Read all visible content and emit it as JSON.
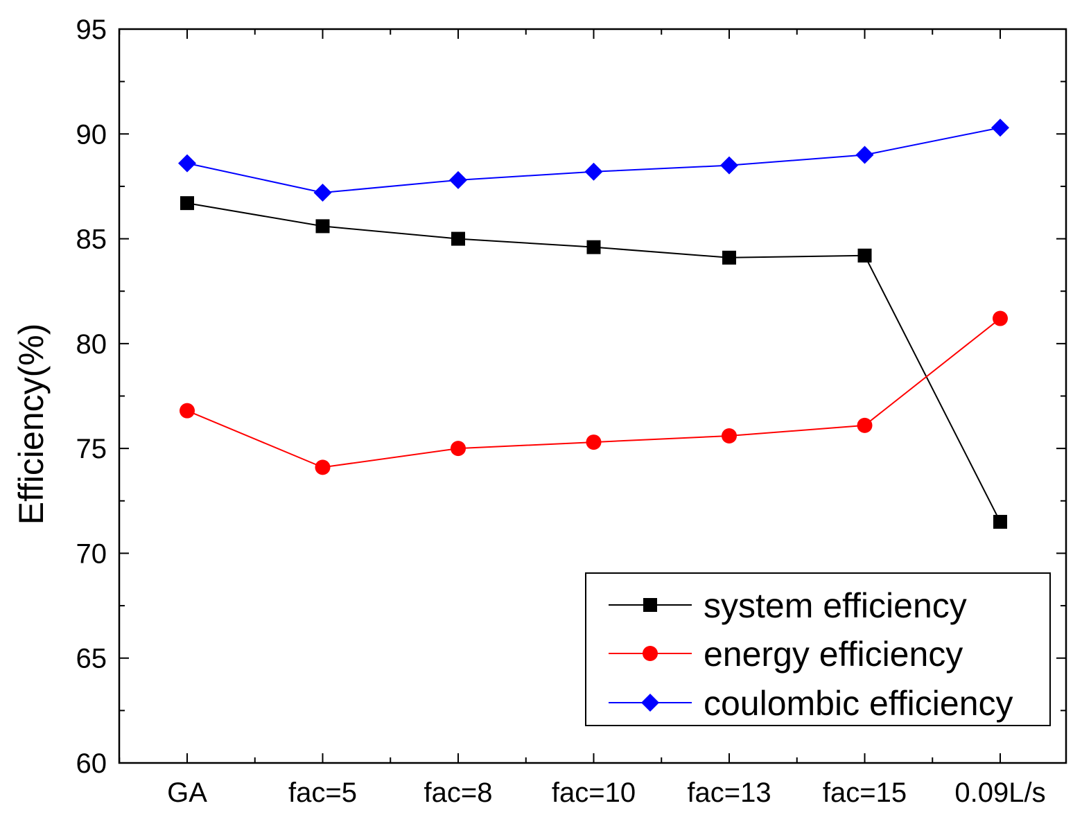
{
  "chart_data": {
    "type": "line",
    "categories": [
      "GA",
      "fac=5",
      "fac=8",
      "fac=10",
      "fac=13",
      "fac=15",
      "0.09L/s"
    ],
    "ylabel": "Efficiency(%)",
    "xlabel": "",
    "ylim": [
      60,
      95
    ],
    "yticks": [
      60,
      65,
      70,
      75,
      80,
      85,
      90,
      95
    ],
    "grid": false,
    "legend_position": "bottom-right",
    "series": [
      {
        "name": "system efficiency",
        "color": "#000000",
        "marker": "square",
        "values": [
          86.7,
          85.6,
          85.0,
          84.6,
          84.1,
          84.2,
          71.5
        ]
      },
      {
        "name": "energy efficiency",
        "color": "#ff0000",
        "marker": "circle",
        "values": [
          76.8,
          74.1,
          75.0,
          75.3,
          75.6,
          76.1,
          81.2
        ]
      },
      {
        "name": "coulombic efficiency",
        "color": "#0000ff",
        "marker": "diamond",
        "values": [
          88.6,
          87.2,
          87.8,
          88.2,
          88.5,
          89.0,
          90.3
        ]
      }
    ]
  }
}
